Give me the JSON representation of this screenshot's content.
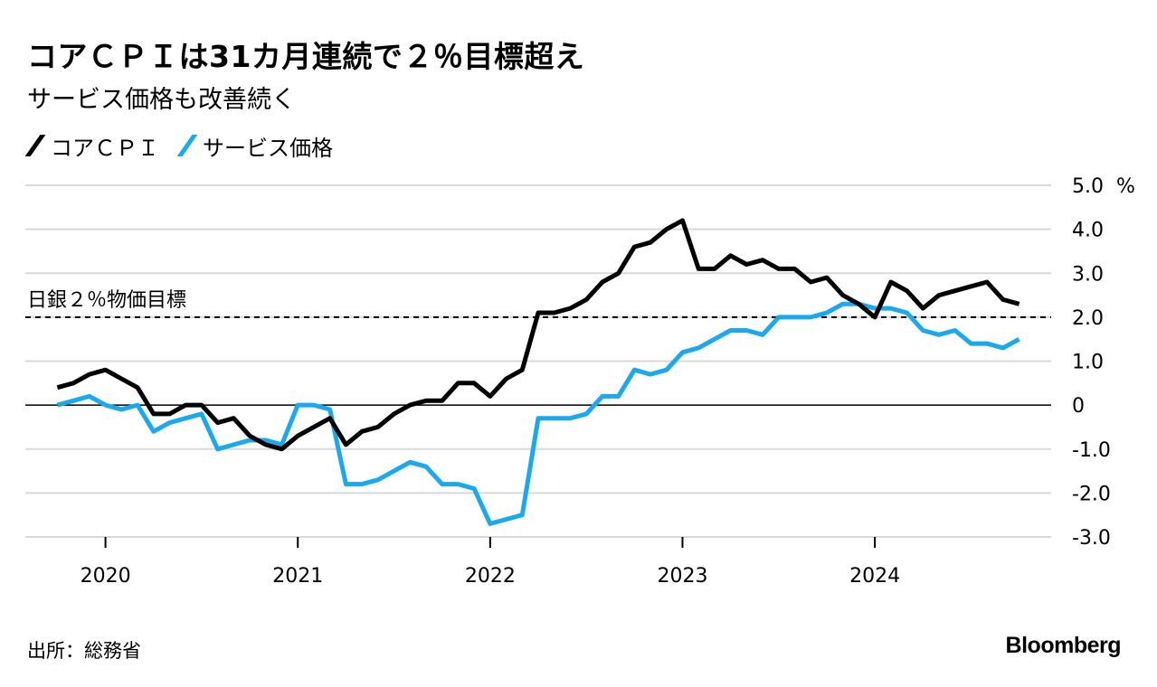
{
  "header": {
    "title": "コアＣＰＩは31カ月連続で２％目標超え",
    "subtitle": "サービス価格も改善続く"
  },
  "footer": {
    "source": "出所：総務省",
    "brand": "Bloomberg"
  },
  "colors": {
    "core_cpi": "#000000",
    "services": "#1aa9ef",
    "grid": "#d9d9d9",
    "zero_line": "#000000",
    "target_line": "#000000"
  },
  "chart_data": {
    "type": "line",
    "title": "コアＣＰＩは31カ月連続で２％目標超え",
    "subtitle": "サービス価格も改善続く",
    "xlabel": "",
    "ylabel": "",
    "x_start": "2019-10",
    "x_end": "2024-10",
    "xlim": [
      "2019-08",
      "2024-12"
    ],
    "ylim": [
      -3.0,
      5.0
    ],
    "yticks": [
      -3.0,
      -2.0,
      -1.0,
      0,
      1.0,
      2.0,
      3.0,
      4.0,
      5.0
    ],
    "ytick_labels": [
      "-3.0",
      "-2.0",
      "-1.0",
      "0",
      "1.0",
      "2.0",
      "3.0",
      "4.0",
      "5.0"
    ],
    "y_unit": "%",
    "xticks": [
      {
        "label": "2020",
        "date": "2020-01"
      },
      {
        "label": "2021",
        "date": "2021-01"
      },
      {
        "label": "2022",
        "date": "2022-01"
      },
      {
        "label": "2023",
        "date": "2023-01"
      },
      {
        "label": "2024",
        "date": "2024-01"
      }
    ],
    "grid": true,
    "legend_position": "top-left",
    "annotations": [
      {
        "text": "日銀２％物価目標",
        "y": 2.0,
        "style": "dashed"
      }
    ],
    "series": [
      {
        "name": "コアＣＰＩ",
        "color": "#000000",
        "values": [
          0.4,
          0.5,
          0.7,
          0.8,
          0.6,
          0.4,
          -0.2,
          -0.2,
          0.0,
          0.0,
          -0.4,
          -0.3,
          -0.7,
          -0.9,
          -1.0,
          -0.7,
          -0.5,
          -0.3,
          -0.9,
          -0.6,
          -0.5,
          -0.2,
          0.0,
          0.1,
          0.1,
          0.5,
          0.5,
          0.2,
          0.6,
          0.8,
          2.1,
          2.1,
          2.2,
          2.4,
          2.8,
          3.0,
          3.6,
          3.7,
          4.0,
          4.2,
          3.1,
          3.1,
          3.4,
          3.2,
          3.3,
          3.1,
          3.1,
          2.8,
          2.9,
          2.5,
          2.3,
          2.0,
          2.8,
          2.6,
          2.2,
          2.5,
          2.6,
          2.7,
          2.8,
          2.4,
          2.3
        ]
      },
      {
        "name": "サービス価格",
        "color": "#1aa9ef",
        "values": [
          0.0,
          0.1,
          0.2,
          0.0,
          -0.1,
          0.0,
          -0.6,
          -0.4,
          -0.3,
          -0.2,
          -1.0,
          -0.9,
          -0.8,
          -0.8,
          -0.9,
          0.0,
          0.0,
          -0.1,
          -1.8,
          -1.8,
          -1.7,
          -1.5,
          -1.3,
          -1.4,
          -1.8,
          -1.8,
          -1.9,
          -2.7,
          -2.6,
          -2.5,
          -0.3,
          -0.3,
          -0.3,
          -0.2,
          0.2,
          0.2,
          0.8,
          0.7,
          0.8,
          1.2,
          1.3,
          1.5,
          1.7,
          1.7,
          1.6,
          2.0,
          2.0,
          2.0,
          2.1,
          2.3,
          2.3,
          2.2,
          2.2,
          2.1,
          1.7,
          1.6,
          1.7,
          1.4,
          1.4,
          1.3,
          1.5
        ]
      }
    ]
  }
}
